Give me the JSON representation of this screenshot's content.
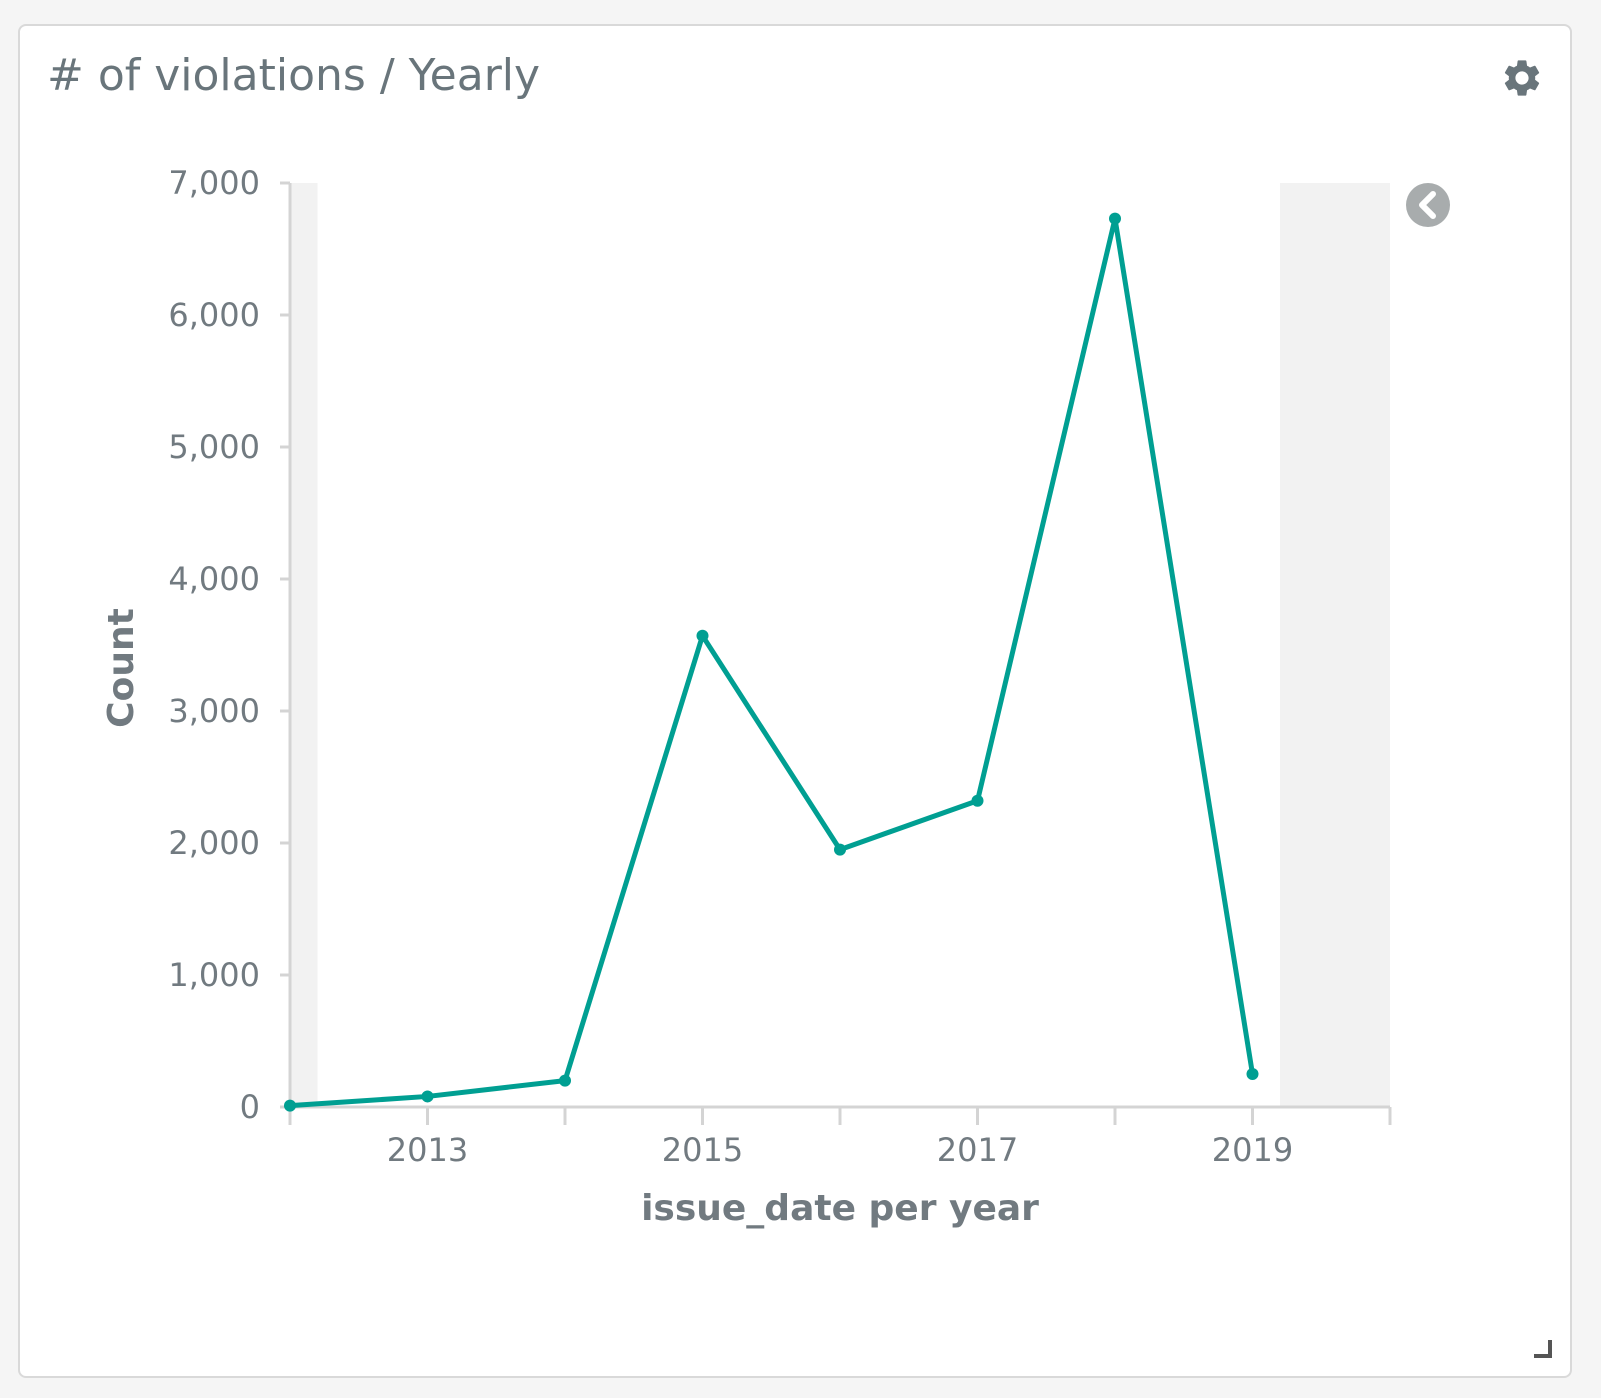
{
  "panel": {
    "title": "# of violations / Yearly",
    "settings_icon": "gear-icon",
    "legend_toggle_icon": "chevron-left-circle-icon",
    "resize_icon": "resize-corner-icon"
  },
  "colors": {
    "line": "#009f92",
    "axis": "#d4d4d4",
    "text": "#717a80",
    "shade": "#f2f2f2"
  },
  "chart_data": {
    "type": "line",
    "xlabel": "issue_date per year",
    "ylabel": "Count",
    "ylim": [
      0,
      7000
    ],
    "yticks": [
      0,
      1000,
      2000,
      3000,
      4000,
      5000,
      6000,
      7000
    ],
    "ytick_labels": [
      "0",
      "1,000",
      "2,000",
      "3,000",
      "4,000",
      "5,000",
      "6,000",
      "7,000"
    ],
    "xlim": [
      2012,
      2020
    ],
    "xticks": [
      2012,
      2013,
      2014,
      2015,
      2016,
      2017,
      2018,
      2019,
      2020
    ],
    "xtick_labels": [
      "2013",
      "2015",
      "2017",
      "2019"
    ],
    "xtick_label_values": [
      2013,
      2015,
      2017,
      2019
    ],
    "out_of_range_shading": [
      [
        2012,
        2012.2
      ],
      [
        2019.2,
        2020
      ]
    ],
    "grid": false,
    "legend": "collapsed, top-right",
    "series": [
      {
        "x": [
          2012,
          2013,
          2014,
          2015,
          2016,
          2017,
          2018,
          2019
        ],
        "values": [
          10,
          80,
          200,
          3570,
          1950,
          2320,
          6730,
          250
        ]
      }
    ]
  }
}
